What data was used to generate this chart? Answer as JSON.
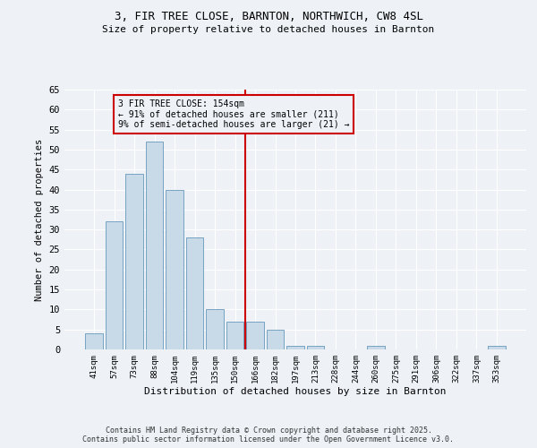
{
  "title1": "3, FIR TREE CLOSE, BARNTON, NORTHWICH, CW8 4SL",
  "title2": "Size of property relative to detached houses in Barnton",
  "xlabel": "Distribution of detached houses by size in Barnton",
  "ylabel": "Number of detached properties",
  "bar_labels": [
    "41sqm",
    "57sqm",
    "73sqm",
    "88sqm",
    "104sqm",
    "119sqm",
    "135sqm",
    "150sqm",
    "166sqm",
    "182sqm",
    "197sqm",
    "213sqm",
    "228sqm",
    "244sqm",
    "260sqm",
    "275sqm",
    "291sqm",
    "306sqm",
    "322sqm",
    "337sqm",
    "353sqm"
  ],
  "bar_values": [
    4,
    32,
    44,
    52,
    40,
    28,
    10,
    7,
    7,
    5,
    1,
    1,
    0,
    0,
    1,
    0,
    0,
    0,
    0,
    0,
    1
  ],
  "bar_color": "#c8d9e8",
  "bar_edgecolor": "#6699bb",
  "vline_x": 7.5,
  "vline_color": "#cc0000",
  "annotation_text": "3 FIR TREE CLOSE: 154sqm\n← 91% of detached houses are smaller (211)\n9% of semi-detached houses are larger (21) →",
  "annotation_box_color": "#cc0000",
  "ylim": [
    0,
    65
  ],
  "yticks": [
    0,
    5,
    10,
    15,
    20,
    25,
    30,
    35,
    40,
    45,
    50,
    55,
    60,
    65
  ],
  "background_color": "#eef2f7",
  "grid_color": "#ffffff",
  "footer1": "Contains HM Land Registry data © Crown copyright and database right 2025.",
  "footer2": "Contains public sector information licensed under the Open Government Licence v3.0."
}
